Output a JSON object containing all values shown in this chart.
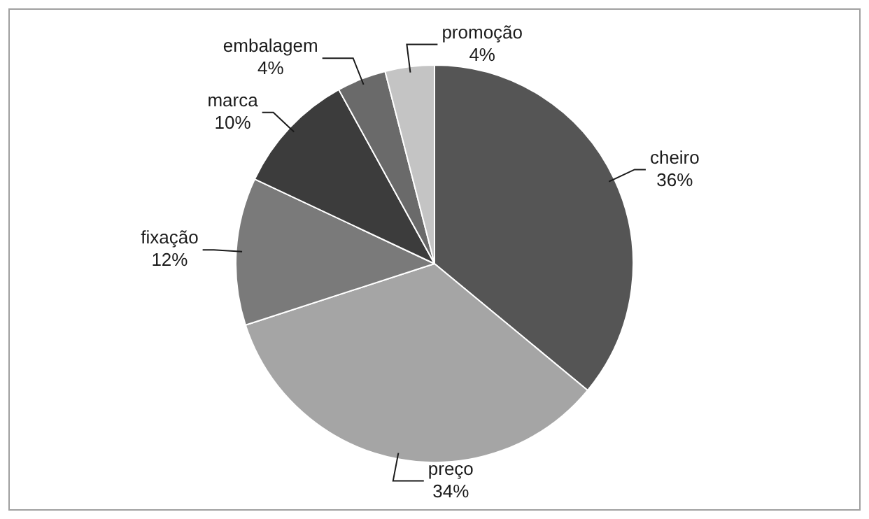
{
  "chart_data": {
    "type": "pie",
    "categories": [
      "cheiro",
      "preço",
      "fixação",
      "marca",
      "embalagem",
      "promoção"
    ],
    "values": [
      36,
      34,
      12,
      10,
      4,
      4
    ],
    "value_labels": [
      "36%",
      "34%",
      "12%",
      "10%",
      "4%",
      "4%"
    ],
    "colors": [
      "#555555",
      "#a5a5a5",
      "#7a7a7a",
      "#3c3c3c",
      "#6a6a6a",
      "#c4c4c4"
    ],
    "legend": false
  }
}
